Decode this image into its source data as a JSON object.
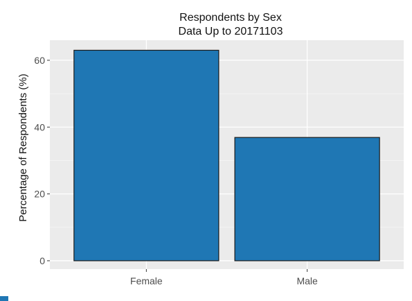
{
  "chart_data": {
    "type": "bar",
    "title": "Respondents by Sex",
    "subtitle": "Data Up to 20171103",
    "xlabel": "",
    "ylabel": "Percentage of Respondents (%)",
    "categories": [
      "Female",
      "Male"
    ],
    "values": [
      63.0,
      36.9
    ],
    "ylim": [
      -2.5,
      66
    ],
    "yticks": [
      0,
      20,
      40,
      60
    ],
    "yticks_labels": [
      "0",
      "20",
      "40",
      "60"
    ],
    "grid": true,
    "legend": "none",
    "colors": {
      "bar_fill": "#1f77b4",
      "bar_stroke": "#1a1a1a",
      "panel": "#ebebeb",
      "grid_major": "#ffffff",
      "grid_minor": "#f5f5f5",
      "corner_mark": "#1f77b4"
    }
  }
}
